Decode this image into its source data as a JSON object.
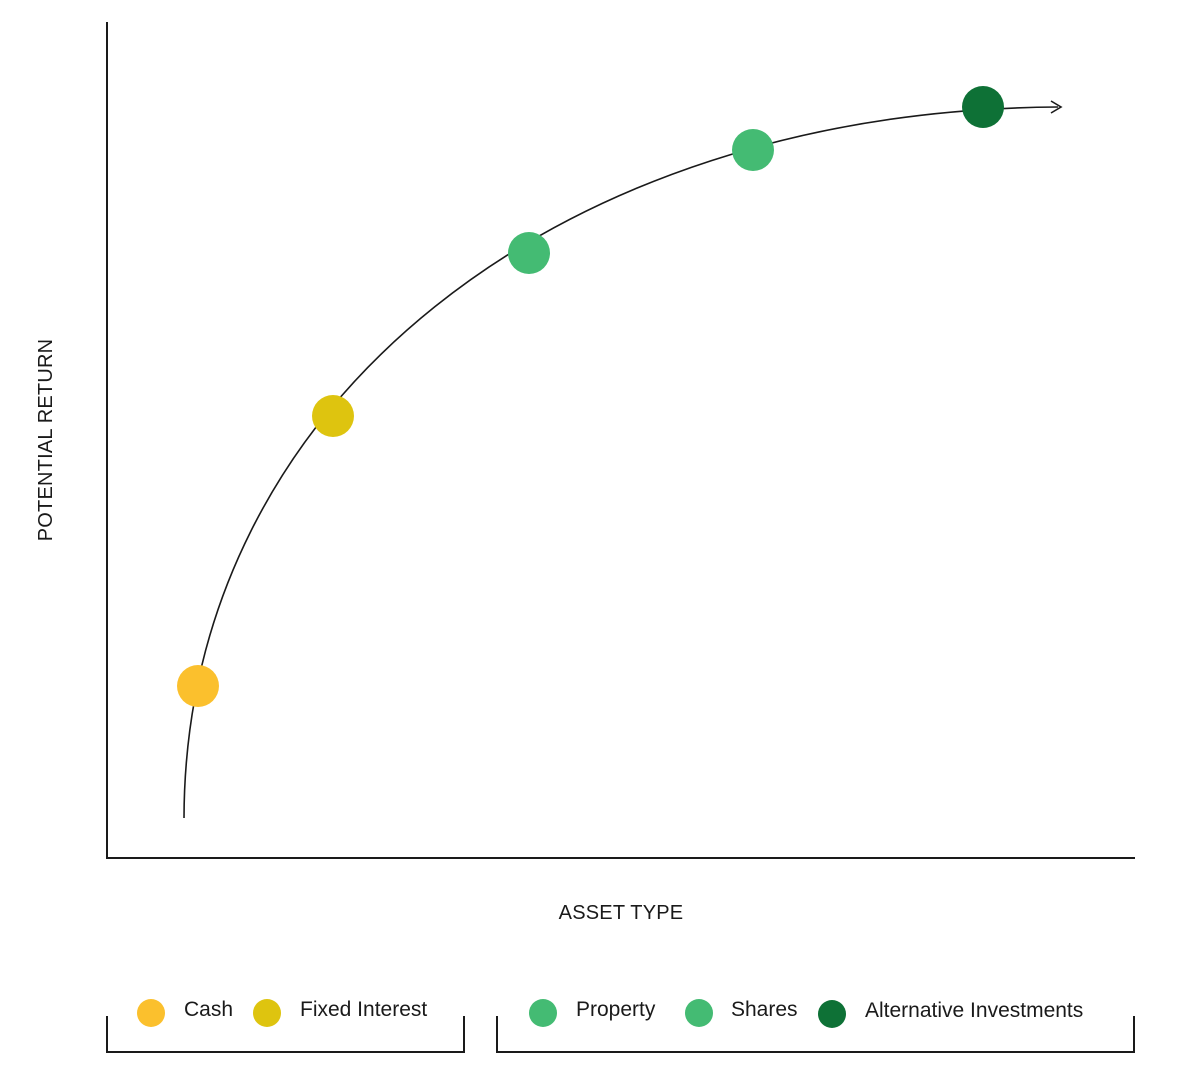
{
  "chart_data": {
    "type": "scatter",
    "title": "",
    "xlabel": "ASSET TYPE",
    "ylabel": "POTENTIAL RETURN",
    "grid": false,
    "curve": "increasing concave curve with arrow at the end",
    "points": [
      {
        "name": "Cash",
        "x": 1,
        "y": 1,
        "color": "#FBC02D"
      },
      {
        "name": "Fixed Interest",
        "x": 2,
        "y": 2,
        "color": "#DEC40F"
      },
      {
        "name": "Property",
        "x": 3,
        "y": 3,
        "color": "#44BB73"
      },
      {
        "name": "Shares",
        "x": 4,
        "y": 4,
        "color": "#44BB73"
      },
      {
        "name": "Alternative Investments",
        "x": 5,
        "y": 5,
        "color": "#0E7136"
      }
    ],
    "legend": {
      "placement": "bottom",
      "groups": [
        {
          "items": [
            {
              "label": "Cash",
              "color": "#FBC02D"
            },
            {
              "label": "Fixed Interest",
              "color": "#DEC40F"
            }
          ]
        },
        {
          "items": [
            {
              "label": "Property",
              "color": "#44BB73"
            },
            {
              "label": "Shares",
              "color": "#44BB73"
            },
            {
              "label": "Alternative Investments",
              "color": "#0E7136"
            }
          ]
        }
      ]
    }
  }
}
